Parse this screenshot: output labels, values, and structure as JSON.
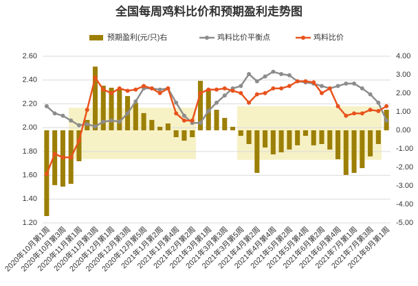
{
  "chart_data": {
    "type": "combo",
    "title": "全国每周鸡料比价和预期盈利走势图",
    "categories": [
      "2020年10月第1周",
      null,
      "2020年10月第3周",
      null,
      "2020年11月第1周",
      null,
      "2020年11月第3周",
      null,
      "2020年12月第1周",
      null,
      "2020年12月第3周",
      null,
      "2020年12月第5周",
      null,
      "2021年1月第2周",
      null,
      "2021年1月第4周",
      null,
      "2021年2月第2周",
      null,
      "2021年3月第1周",
      null,
      "2021年3月第3周",
      null,
      "2021年3月第5周",
      null,
      "2021年4月第2周",
      null,
      "2021年4月第4周",
      null,
      "2021年5月第2周",
      null,
      "2021年5月第4周",
      null,
      "2021年6月第2周",
      null,
      "2021年6月第4周",
      null,
      "2021年7月第1周",
      null,
      "2021年7月第3周",
      null,
      "2021年8月第1周"
    ],
    "series": [
      {
        "name": "预期盈利(元/只)右",
        "kind": "bar",
        "axis": "y2",
        "color": "#9c7f06",
        "values": [
          -4.63,
          -2.96,
          -3.04,
          -2.89,
          -1.67,
          0.56,
          3.44,
          2.41,
          2.3,
          2.22,
          1.85,
          1.48,
          0.93,
          0.56,
          0.19,
          0.37,
          -0.37,
          -0.56,
          -0.37,
          2.67,
          2.22,
          1.11,
          0.67,
          0.19,
          -0.3,
          -0.74,
          -2.3,
          -0.93,
          -1.3,
          -1.19,
          -1.04,
          -0.81,
          -0.3,
          -0.81,
          -0.74,
          -1.04,
          -1.56,
          -2.41,
          -2.3,
          -2.04,
          -1.41,
          -0.74,
          1.11
        ]
      },
      {
        "name": "鸡料比价平衡点",
        "kind": "line",
        "color": "#8c8c8c",
        "values": [
          2.18,
          2.12,
          2.1,
          2.06,
          2.02,
          2.03,
          2.01,
          2.05,
          2.06,
          2.05,
          2.12,
          2.22,
          2.33,
          2.33,
          2.32,
          2.33,
          2.21,
          2.1,
          2.04,
          2.04,
          2.14,
          2.21,
          2.27,
          2.33,
          2.35,
          2.45,
          2.39,
          2.43,
          2.47,
          2.45,
          2.44,
          2.39,
          2.38,
          2.37,
          2.35,
          2.33,
          2.35,
          2.37,
          2.37,
          2.33,
          2.28,
          2.21,
          2.06
        ]
      },
      {
        "name": "鸡料比价",
        "kind": "line",
        "color": "#e8521c",
        "values": [
          1.61,
          1.78,
          1.75,
          1.75,
          1.89,
          2.15,
          2.42,
          2.32,
          2.29,
          2.33,
          2.31,
          2.32,
          2.35,
          2.33,
          2.29,
          2.33,
          2.12,
          2.06,
          2.06,
          2.29,
          2.32,
          2.32,
          2.33,
          2.31,
          2.29,
          2.21,
          2.28,
          2.29,
          2.33,
          2.33,
          2.35,
          2.39,
          2.39,
          2.38,
          2.29,
          2.33,
          2.18,
          2.1,
          2.12,
          2.12,
          2.15,
          2.14,
          2.18
        ]
      }
    ],
    "ylim": [
      1.2,
      2.6
    ],
    "yticks": [
      {
        "value": 1.2,
        "label": "1.20"
      },
      {
        "value": 1.4,
        "label": "1.40"
      },
      {
        "value": 1.6,
        "label": "1.60"
      },
      {
        "value": 1.8,
        "label": "1.80"
      },
      {
        "value": 2.0,
        "label": "2.00"
      },
      {
        "value": 2.2,
        "label": "2.20"
      },
      {
        "value": 2.4,
        "label": "2.40"
      },
      {
        "value": 2.6,
        "label": "2.60"
      }
    ],
    "y2lim": [
      -5,
      4
    ],
    "y2ticks": [
      {
        "value": 4,
        "label": "4.00"
      },
      {
        "value": 3,
        "label": "3.00"
      },
      {
        "value": 2,
        "label": "2.00"
      },
      {
        "value": 1,
        "label": "1.00"
      },
      {
        "value": 0,
        "label": "0.00"
      },
      {
        "value": -1,
        "label": "-1.00"
      },
      {
        "value": -2,
        "label": "-2.00"
      },
      {
        "value": -3,
        "label": "-3.00"
      },
      {
        "value": -4,
        "label": "-4.00"
      },
      {
        "value": -5,
        "label": "-5.00"
      }
    ],
    "grid": true,
    "legend": "top"
  }
}
